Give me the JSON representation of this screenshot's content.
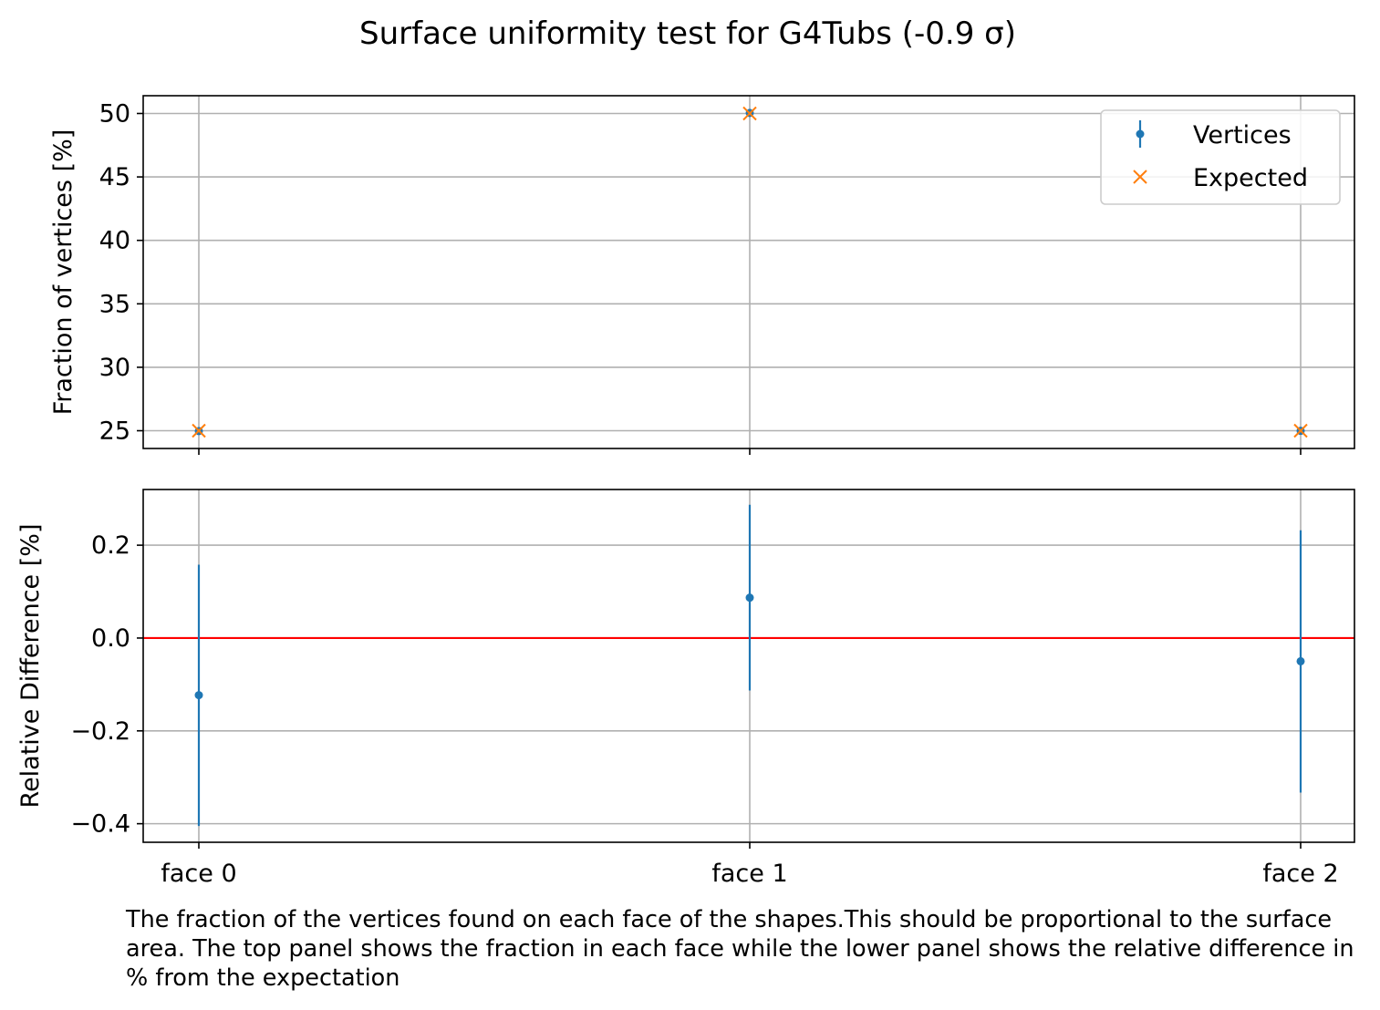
{
  "figure": {
    "title": "Surface uniformity test for G4Tubs (-0.9 σ)",
    "caption": "The fraction of the vertices found on each face of the shapes.This should be proportional to the surface area. The top panel shows the fraction in each face while the lower panel shows the relative difference in % from the expectation"
  },
  "chart_data": [
    {
      "type": "scatter",
      "panel": "top",
      "categories": [
        "face 0",
        "face 1",
        "face 2"
      ],
      "ylabel": "Fraction of vertices [%]",
      "ylim": [
        23.6,
        51.4
      ],
      "yticks": [
        25,
        30,
        35,
        40,
        45,
        50
      ],
      "grid": true,
      "legend": "top-right",
      "series": [
        {
          "name": "Vertices",
          "marker": "dot-errorbar",
          "color": "#1f77b4",
          "values": [
            24.97,
            50.04,
            24.99
          ],
          "errors": [
            0.07,
            0.1,
            0.07
          ]
        },
        {
          "name": "Expected",
          "marker": "x",
          "color": "#ff7f0e",
          "values": [
            25.0,
            50.0,
            25.0
          ]
        }
      ]
    },
    {
      "type": "scatter",
      "panel": "bottom",
      "categories": [
        "face 0",
        "face 1",
        "face 2"
      ],
      "ylabel": "Relative Difference [%]",
      "ylim": [
        -0.44,
        0.32
      ],
      "yticks": [
        -0.4,
        -0.2,
        0.0,
        0.2
      ],
      "yticklabels": [
        "−0.4",
        "−0.2",
        "0.0",
        "0.2"
      ],
      "grid": true,
      "reference_line": {
        "y": 0.0,
        "color": "#ff0000"
      },
      "series": [
        {
          "marker": "dot-errorbar",
          "color": "#1f77b4",
          "values": [
            -0.123,
            0.087,
            -0.05
          ],
          "lower": [
            -0.405,
            -0.113,
            -0.333
          ],
          "upper": [
            0.158,
            0.287,
            0.232
          ]
        }
      ]
    }
  ]
}
